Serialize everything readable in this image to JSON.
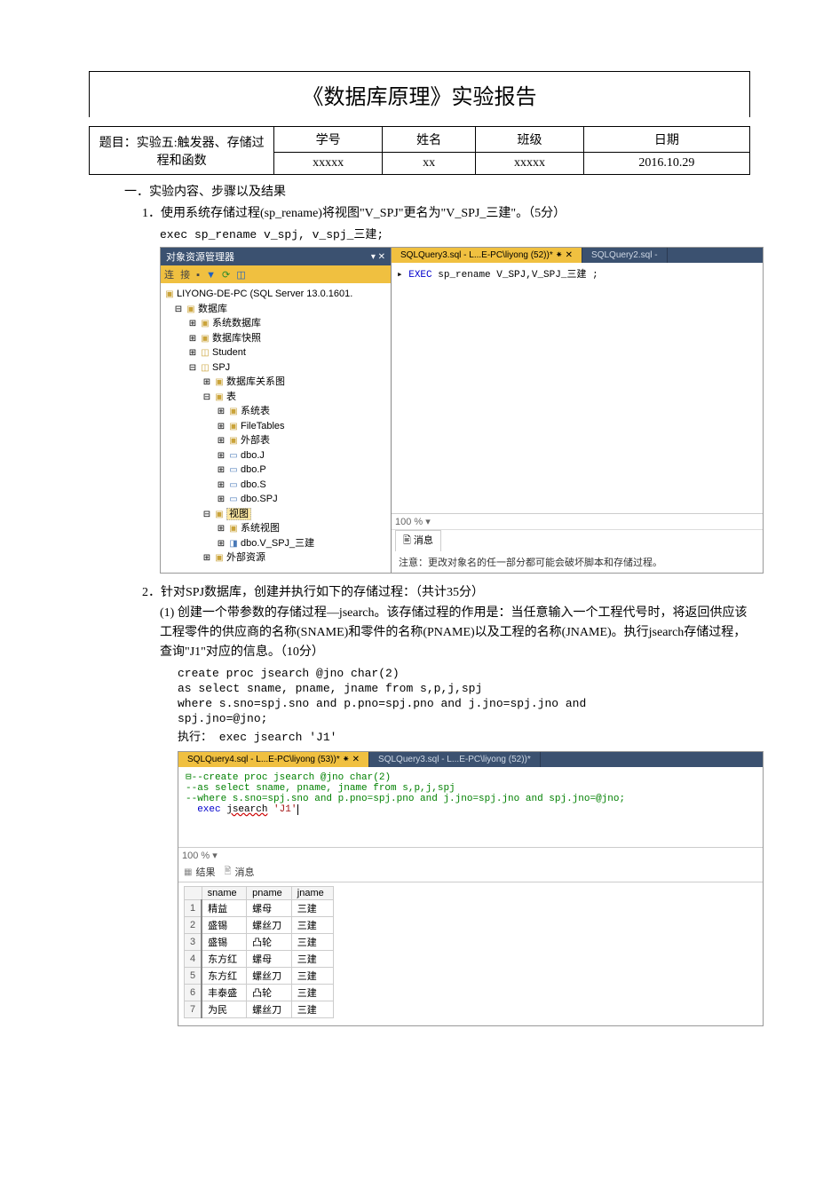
{
  "report": {
    "title": "《数据库原理》实验报告",
    "topic_label": "题目：实验五:触发器、存储过程和函数",
    "headers": {
      "student_no": "学号",
      "name": "姓名",
      "class": "班级",
      "date": "日期"
    },
    "values": {
      "student_no": "xxxxx",
      "name": "xx",
      "class": "xxxxx",
      "date": "2016.10.29"
    }
  },
  "section1": {
    "heading": "一．实验内容、步骤以及结果",
    "item1": {
      "num": "1．",
      "text": "使用系统存储过程(sp_rename)将视图\"V_SPJ\"更名为\"V_SPJ_三建\"。（5分）",
      "code": "exec sp_rename v_spj,  v_spj_三建;"
    },
    "item2": {
      "num": "2．",
      "text": "针对SPJ数据库，创建并执行如下的存储过程：（共计35分）",
      "sub1": {
        "num": "(1)",
        "text": "创建一个带参数的存储过程—jsearch。该存储过程的作用是：当任意输入一个工程代号时，将返回供应该工程零件的供应商的名称(SNAME)和零件的名称(PNAME)以及工程的名称(JNAME)。执行jsearch存储过程，查询\"J1\"对应的信息。（10分）",
        "code1": "create proc jsearch  @jno char(2)",
        "code2": "as select sname, pname, jname from s,p,j,spj",
        "code3": "where s.sno=spj.sno and p.pno=spj.pno and j.jno=spj.jno and",
        "code4": "spj.jno=@jno;",
        "code5": "执行：  exec jsearch 'J1'"
      }
    }
  },
  "shot1": {
    "explorer_title": "对象资源管理器",
    "pin_glyph": "▾ ✕",
    "toolbar_items": [
      "连",
      "接",
      "▪",
      "▼",
      "⟳",
      "◫"
    ],
    "server": "LIYONG-DE-PC (SQL Server 13.0.1601.",
    "nodes": [
      {
        "indent": 1,
        "exp": "⊟",
        "ico": "folder",
        "label": "数据库"
      },
      {
        "indent": 2,
        "exp": "⊞",
        "ico": "folder",
        "label": "系统数据库"
      },
      {
        "indent": 2,
        "exp": "⊞",
        "ico": "folder",
        "label": "数据库快照"
      },
      {
        "indent": 2,
        "exp": "⊞",
        "ico": "db",
        "label": "Student"
      },
      {
        "indent": 2,
        "exp": "⊟",
        "ico": "db",
        "label": "SPJ"
      },
      {
        "indent": 3,
        "exp": "⊞",
        "ico": "folder",
        "label": "数据库关系图"
      },
      {
        "indent": 3,
        "exp": "⊟",
        "ico": "folder",
        "label": "表"
      },
      {
        "indent": 4,
        "exp": "⊞",
        "ico": "folder",
        "label": "系统表"
      },
      {
        "indent": 4,
        "exp": "⊞",
        "ico": "folder",
        "label": "FileTables"
      },
      {
        "indent": 4,
        "exp": "⊞",
        "ico": "folder",
        "label": "外部表"
      },
      {
        "indent": 4,
        "exp": "⊞",
        "ico": "table",
        "label": "dbo.J"
      },
      {
        "indent": 4,
        "exp": "⊞",
        "ico": "table",
        "label": "dbo.P"
      },
      {
        "indent": 4,
        "exp": "⊞",
        "ico": "table",
        "label": "dbo.S"
      },
      {
        "indent": 4,
        "exp": "⊞",
        "ico": "table",
        "label": "dbo.SPJ"
      },
      {
        "indent": 3,
        "exp": "⊟",
        "ico": "folder",
        "label": "视图",
        "selected": true
      },
      {
        "indent": 4,
        "exp": "⊞",
        "ico": "folder",
        "label": "系统视图"
      },
      {
        "indent": 4,
        "exp": "⊞",
        "ico": "view",
        "label": "dbo.V_SPJ_三建"
      },
      {
        "indent": 3,
        "exp": "⊞",
        "ico": "folder",
        "label": "外部资源"
      }
    ],
    "tabs": {
      "active": "SQLQuery3.sql - L...E-PC\\liyong (52))* ⁕ ✕",
      "other": "SQLQuery2.sql -"
    },
    "sql": {
      "kw": "EXEC",
      "rest": " sp_rename V_SPJ,V_SPJ_三建 ;"
    },
    "zoom": "100 %  ▾",
    "msg_tab": "🖹 消息",
    "msg_text": "注意：更改对象名的任一部分都可能会破坏脚本和存储过程。"
  },
  "shot2": {
    "tabs": {
      "active": "SQLQuery4.sql - L...E-PC\\liyong (53))* ⁕ ✕",
      "other": "SQLQuery3.sql - L...E-PC\\liyong (52))*"
    },
    "sql_lines": [
      {
        "type": "comment",
        "text": "⊟--create proc jsearch  @jno char(2)"
      },
      {
        "type": "comment",
        "text": "  --as select sname, pname, jname from s,p,j,spj"
      },
      {
        "type": "comment",
        "text": "  --where s.sno=spj.sno and p.pno=spj.pno and j.jno=spj.jno and spj.jno=@jno;"
      },
      {
        "type": "exec",
        "kw": "exec",
        "fn": "jsearch",
        "str": "'J1'"
      }
    ],
    "zoom": "100 %  ▾",
    "result_tabs": {
      "results": "结果",
      "messages": "消息"
    },
    "grid": {
      "columns": [
        "sname",
        "pname",
        "jname"
      ],
      "rows": [
        [
          "精益",
          "螺母",
          "三建"
        ],
        [
          "盛锡",
          "螺丝刀",
          "三建"
        ],
        [
          "盛锡",
          "凸轮",
          "三建"
        ],
        [
          "东方红",
          "螺母",
          "三建"
        ],
        [
          "东方红",
          "螺丝刀",
          "三建"
        ],
        [
          "丰泰盛",
          "凸轮",
          "三建"
        ],
        [
          "为民",
          "螺丝刀",
          "三建"
        ]
      ]
    }
  }
}
